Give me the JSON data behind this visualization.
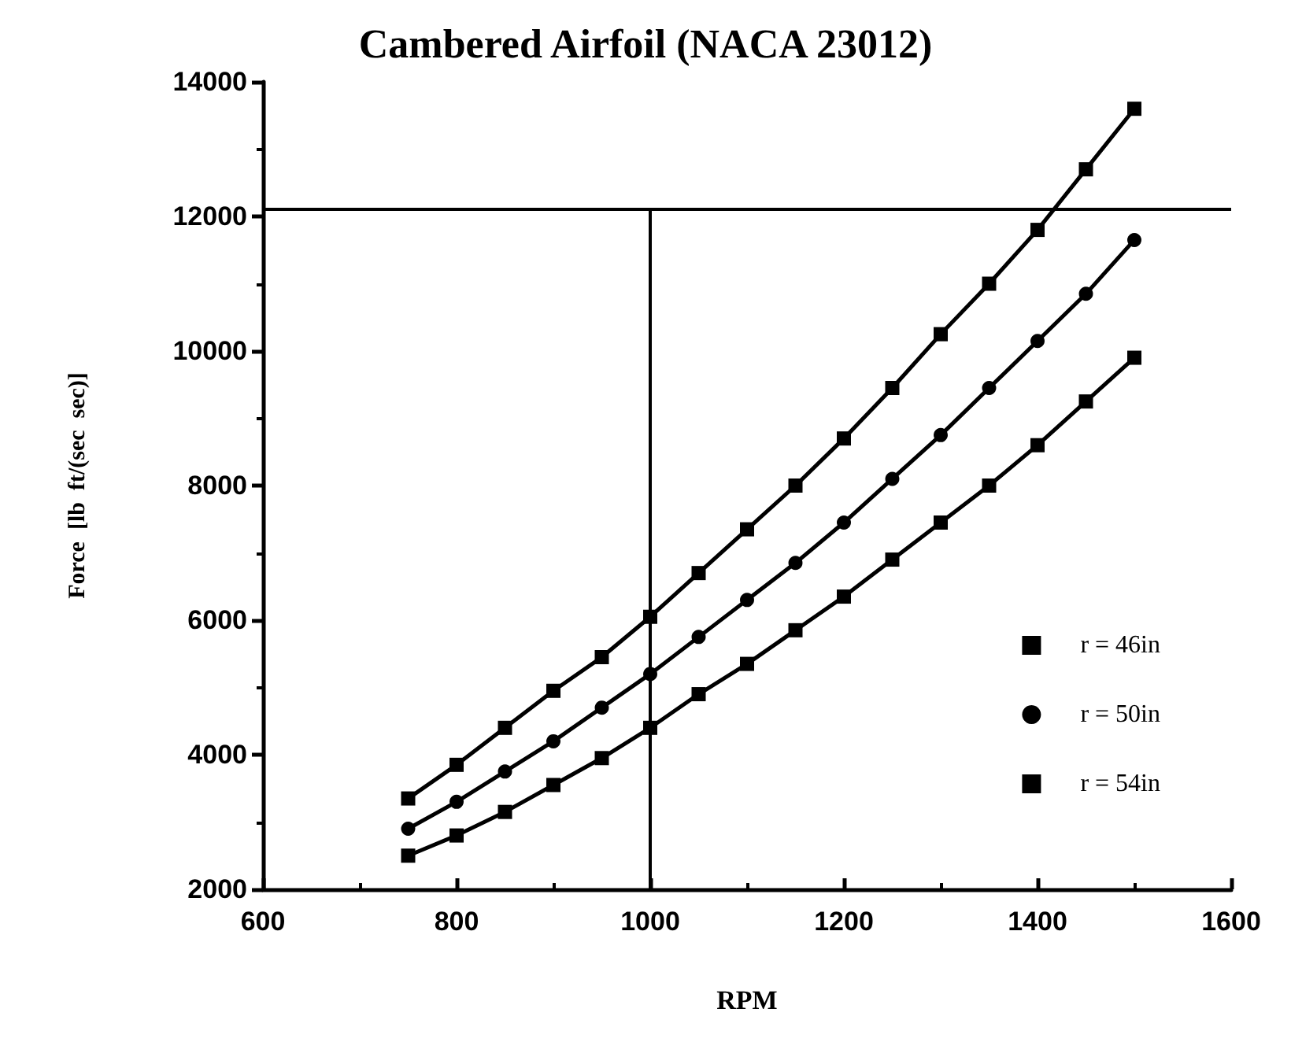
{
  "chart_data": {
    "type": "line",
    "title": "Cambered Airfoil (NACA 23012)",
    "xlabel": "RPM",
    "ylabel": "Force  [lb  ft/(sec  sec)]",
    "x": [
      750,
      800,
      850,
      900,
      950,
      1000,
      1050,
      1100,
      1150,
      1200,
      1250,
      1300,
      1350,
      1400,
      1450,
      1500
    ],
    "series": [
      {
        "name": "r = 46in",
        "color": "#000000",
        "marker": "square",
        "values": [
          2500,
          2800,
          3150,
          3550,
          3950,
          4400,
          4900,
          5350,
          5850,
          6350,
          6900,
          7450,
          8000,
          8600,
          9250,
          9900
        ]
      },
      {
        "name": "r = 50in",
        "color": "#000000",
        "marker": "circle",
        "values": [
          2900,
          3300,
          3750,
          4200,
          4700,
          5200,
          5750,
          6300,
          6850,
          7450,
          8100,
          8750,
          9450,
          10150,
          10850,
          11650
        ]
      },
      {
        "name": "r = 54in",
        "color": "#000000",
        "marker": "square",
        "values": [
          3350,
          3850,
          4400,
          4950,
          5450,
          6050,
          6700,
          7350,
          8000,
          8700,
          9450,
          10250,
          11000,
          11800,
          12700,
          13600
        ]
      }
    ],
    "xlim": [
      600,
      1600
    ],
    "xticks": [
      600,
      800,
      1000,
      1200,
      1400,
      1600
    ],
    "ylim": [
      2000,
      14000
    ],
    "yticks": [
      2000,
      4000,
      6000,
      8000,
      10000,
      12000,
      14000
    ],
    "ref_lines": [
      {
        "axis": "y",
        "value": 12100,
        "color": "#000000"
      },
      {
        "axis": "x",
        "value": 1000,
        "color": "#000000"
      }
    ],
    "grid": false,
    "legend": "bottom right",
    "line_style": "solid"
  }
}
